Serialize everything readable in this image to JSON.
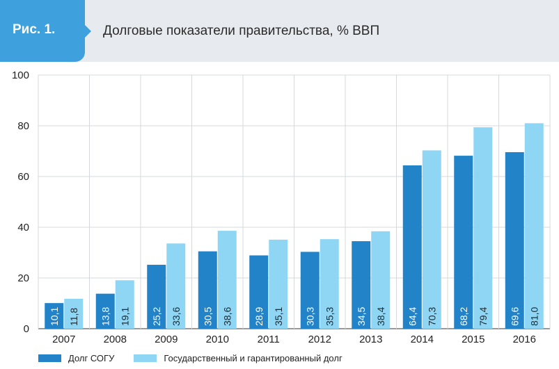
{
  "header": {
    "fig_label": "Рис. 1.",
    "title": "Долговые показатели правительства, % ВВП"
  },
  "colors": {
    "header_bg": "#e7eaee",
    "badge": "#3ea0dc",
    "series1": "#2283c8",
    "series2": "#8fd6f4",
    "grid": "#d5d9dd"
  },
  "chart_data": {
    "type": "bar",
    "categories": [
      "2007",
      "2008",
      "2009",
      "2010",
      "2011",
      "2012",
      "2013",
      "2014",
      "2015",
      "2016"
    ],
    "series": [
      {
        "name": "Долг СОГУ",
        "values": [
          10.1,
          13.8,
          25.2,
          30.5,
          28.9,
          30.3,
          34.5,
          64.4,
          68.2,
          69.6
        ],
        "labels": [
          "10,1",
          "13,8",
          "25,2",
          "30,5",
          "28,9",
          "30,3",
          "34,5",
          "64,4",
          "68,2",
          "69,6"
        ]
      },
      {
        "name": "Государственный и гарантированный долг",
        "values": [
          11.8,
          19.1,
          33.6,
          38.6,
          35.1,
          35.3,
          38.4,
          70.3,
          79.4,
          81.0
        ],
        "labels": [
          "11,8",
          "19,1",
          "33,6",
          "38,6",
          "35,1",
          "35,3",
          "38,4",
          "70,3",
          "79,4",
          "81,0"
        ]
      }
    ],
    "ylim": [
      0,
      100
    ],
    "yticks": [
      "0",
      "20",
      "40",
      "60",
      "80",
      "100"
    ],
    "grid": true,
    "legend": "bottom-left"
  }
}
